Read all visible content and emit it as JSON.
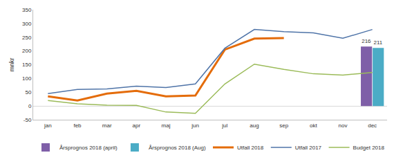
{
  "chart_data": {
    "type": "line",
    "y_label": "mnkr",
    "categories": [
      "jan",
      "feb",
      "mar",
      "apr",
      "maj",
      "jun",
      "jul",
      "aug",
      "sep",
      "okt",
      "nov",
      "dec"
    ],
    "series": [
      {
        "name": "Årsprognos 2018 (april)",
        "type": "bar",
        "color": "#7f5fa8",
        "data_labels": true,
        "values": [
          null,
          null,
          null,
          null,
          null,
          null,
          null,
          null,
          null,
          null,
          null,
          216
        ]
      },
      {
        "name": "Årsprognos 2018 (Aug)",
        "type": "bar",
        "color": "#4bacc6",
        "data_labels": true,
        "values": [
          null,
          null,
          null,
          null,
          null,
          null,
          null,
          null,
          null,
          null,
          null,
          211
        ]
      },
      {
        "name": "Utfall 2018",
        "type": "line",
        "color": "#e46c0a",
        "values": [
          35,
          20,
          45,
          55,
          35,
          38,
          205,
          245,
          247,
          null,
          null,
          null
        ]
      },
      {
        "name": "Utfall 2017",
        "type": "line",
        "color": "#4f74a8",
        "values": [
          45,
          60,
          62,
          72,
          67,
          80,
          210,
          278,
          270,
          266,
          246,
          278
        ]
      },
      {
        "name": "Budget 2018",
        "type": "line",
        "color": "#9bbb59",
        "values": [
          20,
          8,
          3,
          2,
          -22,
          -27,
          80,
          152,
          133,
          117,
          112,
          122
        ]
      }
    ],
    "ylim": [
      -50,
      350
    ],
    "yticks": [
      -50,
      0,
      50,
      100,
      150,
      200,
      250,
      300,
      350
    ],
    "grid": false,
    "legend": "bottom"
  }
}
